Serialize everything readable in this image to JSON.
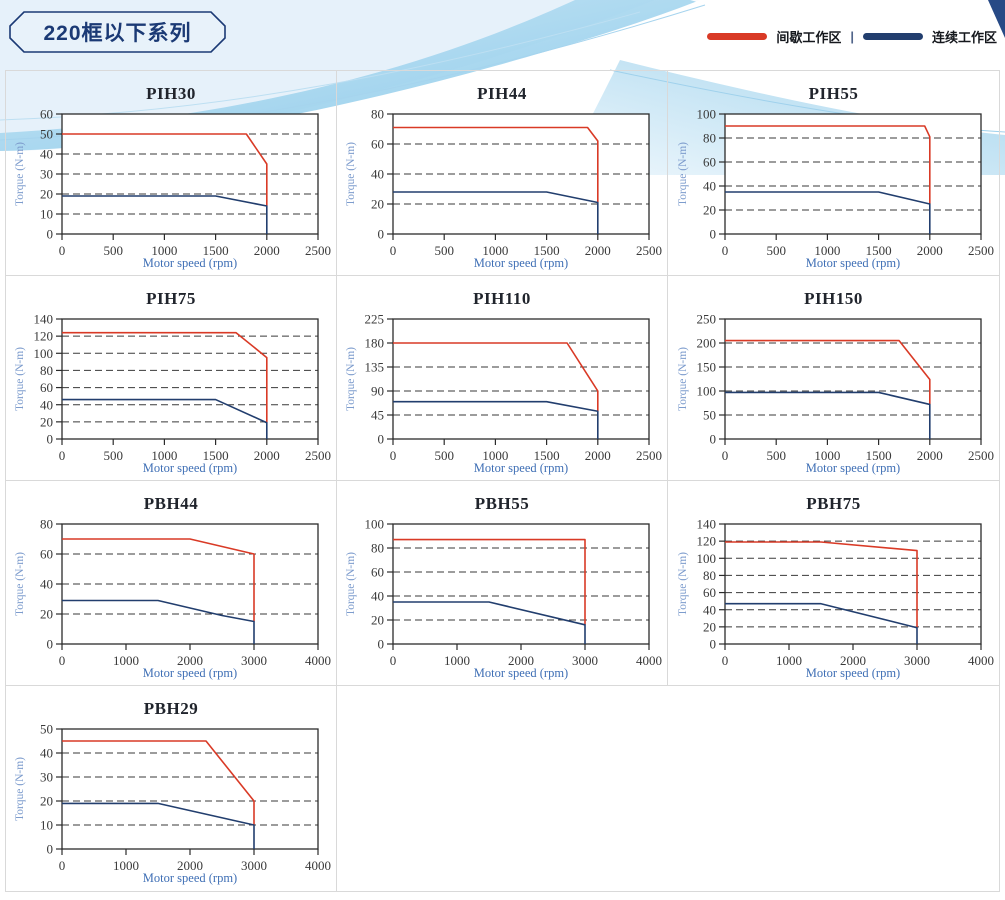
{
  "header": {
    "title": "220框以下系列"
  },
  "legend": {
    "intermittent": "间歇工作区",
    "separator": "|",
    "continuous": "连续工作区",
    "position": "top-right"
  },
  "colors": {
    "intermittent_red": "#d93a26",
    "continuous_navy": "#223e6e",
    "axis": "#2b2b2b",
    "gridline": "#3a3a3a",
    "tick_text": "#3a3a3a",
    "y_axis_label": "#7d9ccd",
    "x_axis_label": "#3f6fb5",
    "tile_border": "#d9d9d9",
    "series_title": "#1b3a75"
  },
  "axis_labels": {
    "y": "Torque (N-m)",
    "x": "Motor speed (rpm)"
  },
  "chart_data": [
    {
      "type": "line",
      "title": "PIH30",
      "xlabel": "Motor speed (rpm)",
      "ylabel": "Torque (N-m)",
      "xlim": [
        0,
        2500
      ],
      "xstep": 500,
      "ylim": [
        0,
        60
      ],
      "ystep": 10,
      "grid": "horizontal-dashed",
      "series": [
        {
          "name": "间歇工作区",
          "color": "intermittent_red",
          "points": [
            [
              0,
              50
            ],
            [
              1800,
              50
            ],
            [
              2000,
              35
            ],
            [
              2000,
              14
            ]
          ]
        },
        {
          "name": "连续工作区",
          "color": "continuous_navy",
          "points": [
            [
              0,
              19
            ],
            [
              1500,
              19
            ],
            [
              2000,
              14
            ],
            [
              2000,
              0
            ]
          ]
        }
      ]
    },
    {
      "type": "line",
      "title": "PIH44",
      "xlabel": "Motor speed (rpm)",
      "ylabel": "Torque (N-m)",
      "xlim": [
        0,
        2500
      ],
      "xstep": 500,
      "ylim": [
        0,
        80
      ],
      "ystep": 20,
      "grid": "horizontal-dashed",
      "series": [
        {
          "name": "间歇工作区",
          "color": "intermittent_red",
          "points": [
            [
              0,
              71
            ],
            [
              1900,
              71
            ],
            [
              2000,
              62
            ],
            [
              2000,
              21
            ]
          ]
        },
        {
          "name": "连续工作区",
          "color": "continuous_navy",
          "points": [
            [
              0,
              28
            ],
            [
              1500,
              28
            ],
            [
              2000,
              21
            ],
            [
              2000,
              0
            ]
          ]
        }
      ]
    },
    {
      "type": "line",
      "title": "PIH55",
      "xlabel": "Motor speed (rpm)",
      "ylabel": "Torque (N-m)",
      "xlim": [
        0,
        2500
      ],
      "xstep": 500,
      "ylim": [
        0,
        100
      ],
      "ystep": 20,
      "grid": "horizontal-dashed",
      "series": [
        {
          "name": "间歇工作区",
          "color": "intermittent_red",
          "points": [
            [
              0,
              90
            ],
            [
              1950,
              90
            ],
            [
              2000,
              81
            ],
            [
              2000,
              25
            ]
          ]
        },
        {
          "name": "连续工作区",
          "color": "continuous_navy",
          "points": [
            [
              0,
              35
            ],
            [
              1500,
              35
            ],
            [
              2000,
              25
            ],
            [
              2000,
              0
            ]
          ]
        }
      ]
    },
    {
      "type": "line",
      "title": "PIH75",
      "xlabel": "Motor speed (rpm)",
      "ylabel": "Torque (N-m)",
      "xlim": [
        0,
        2500
      ],
      "xstep": 500,
      "ylim": [
        0,
        140
      ],
      "ystep": 20,
      "grid": "horizontal-dashed",
      "series": [
        {
          "name": "间歇工作区",
          "color": "intermittent_red",
          "points": [
            [
              0,
              124
            ],
            [
              1700,
              124
            ],
            [
              2000,
              95
            ],
            [
              2000,
              19
            ]
          ]
        },
        {
          "name": "连续工作区",
          "color": "continuous_navy",
          "points": [
            [
              0,
              46
            ],
            [
              1500,
              46
            ],
            [
              2000,
              19
            ],
            [
              2000,
              0
            ]
          ]
        }
      ]
    },
    {
      "type": "line",
      "title": "PIH110",
      "xlabel": "Motor speed (rpm)",
      "ylabel": "Torque (N-m)",
      "xlim": [
        0,
        2500
      ],
      "xstep": 500,
      "ylim": [
        0,
        225
      ],
      "ystep": 45,
      "grid": "horizontal-dashed",
      "series": [
        {
          "name": "间歇工作区",
          "color": "intermittent_red",
          "points": [
            [
              0,
              180
            ],
            [
              1700,
              180
            ],
            [
              2000,
              90
            ],
            [
              2000,
              52
            ]
          ]
        },
        {
          "name": "连续工作区",
          "color": "continuous_navy",
          "points": [
            [
              0,
              70
            ],
            [
              1500,
              70
            ],
            [
              2000,
              52
            ],
            [
              2000,
              0
            ]
          ]
        }
      ]
    },
    {
      "type": "line",
      "title": "PIH150",
      "xlabel": "Motor speed (rpm)",
      "ylabel": "Torque (N-m)",
      "xlim": [
        0,
        2500
      ],
      "xstep": 500,
      "ylim": [
        0,
        250
      ],
      "ystep": 50,
      "grid": "horizontal-dashed",
      "series": [
        {
          "name": "间歇工作区",
          "color": "intermittent_red",
          "points": [
            [
              0,
              205
            ],
            [
              1700,
              205
            ],
            [
              2000,
              124
            ],
            [
              2000,
              72
            ]
          ]
        },
        {
          "name": "连续工作区",
          "color": "continuous_navy",
          "points": [
            [
              0,
              97
            ],
            [
              1500,
              97
            ],
            [
              2000,
              72
            ],
            [
              2000,
              0
            ]
          ]
        }
      ]
    },
    {
      "type": "line",
      "title": "PBH44",
      "xlabel": "Motor speed (rpm)",
      "ylabel": "Torque (N-m)",
      "xlim": [
        0,
        4000
      ],
      "xstep": 1000,
      "ylim": [
        0,
        80
      ],
      "ystep": 20,
      "grid": "horizontal-dashed",
      "series": [
        {
          "name": "间歇工作区",
          "color": "intermittent_red",
          "points": [
            [
              0,
              70
            ],
            [
              2000,
              70
            ],
            [
              3000,
              60
            ],
            [
              3000,
              15
            ]
          ]
        },
        {
          "name": "连续工作区",
          "color": "continuous_navy",
          "points": [
            [
              0,
              29
            ],
            [
              1500,
              29
            ],
            [
              2000,
              24
            ],
            [
              2500,
              19
            ],
            [
              3000,
              15
            ],
            [
              3000,
              0
            ]
          ]
        }
      ]
    },
    {
      "type": "line",
      "title": "PBH55",
      "xlabel": "Motor speed (rpm)",
      "ylabel": "Torque (N-m)",
      "xlim": [
        0,
        4000
      ],
      "xstep": 1000,
      "ylim": [
        0,
        100
      ],
      "ystep": 20,
      "grid": "horizontal-dashed",
      "series": [
        {
          "name": "间歇工作区",
          "color": "intermittent_red",
          "points": [
            [
              0,
              87
            ],
            [
              3000,
              87
            ],
            [
              3000,
              16
            ]
          ]
        },
        {
          "name": "连续工作区",
          "color": "continuous_navy",
          "points": [
            [
              0,
              35
            ],
            [
              1500,
              35
            ],
            [
              3000,
              16
            ],
            [
              3000,
              0
            ]
          ]
        }
      ]
    },
    {
      "type": "line",
      "title": "PBH75",
      "xlabel": "Motor speed (rpm)",
      "ylabel": "Torque (N-m)",
      "xlim": [
        0,
        4000
      ],
      "xstep": 1000,
      "ylim": [
        0,
        140
      ],
      "ystep": 20,
      "grid": "horizontal-dashed",
      "series": [
        {
          "name": "间歇工作区",
          "color": "intermittent_red",
          "points": [
            [
              0,
              119
            ],
            [
              1500,
              119
            ],
            [
              3000,
              109
            ],
            [
              3000,
              19
            ]
          ]
        },
        {
          "name": "连续工作区",
          "color": "continuous_navy",
          "points": [
            [
              0,
              47
            ],
            [
              1500,
              47
            ],
            [
              3000,
              19
            ],
            [
              3000,
              0
            ]
          ]
        }
      ]
    },
    {
      "type": "line",
      "title": "PBH29",
      "xlabel": "Motor speed (rpm)",
      "ylabel": "Torque (N-m)",
      "xlim": [
        0,
        4000
      ],
      "xstep": 1000,
      "ylim": [
        0,
        50
      ],
      "ystep": 10,
      "grid": "horizontal-dashed",
      "series": [
        {
          "name": "间歇工作区",
          "color": "intermittent_red",
          "points": [
            [
              0,
              45
            ],
            [
              2250,
              45
            ],
            [
              3000,
              20
            ],
            [
              3000,
              10
            ]
          ]
        },
        {
          "name": "连续工作区",
          "color": "continuous_navy",
          "points": [
            [
              0,
              19
            ],
            [
              1500,
              19
            ],
            [
              3000,
              10
            ],
            [
              3000,
              0
            ]
          ]
        }
      ]
    }
  ]
}
